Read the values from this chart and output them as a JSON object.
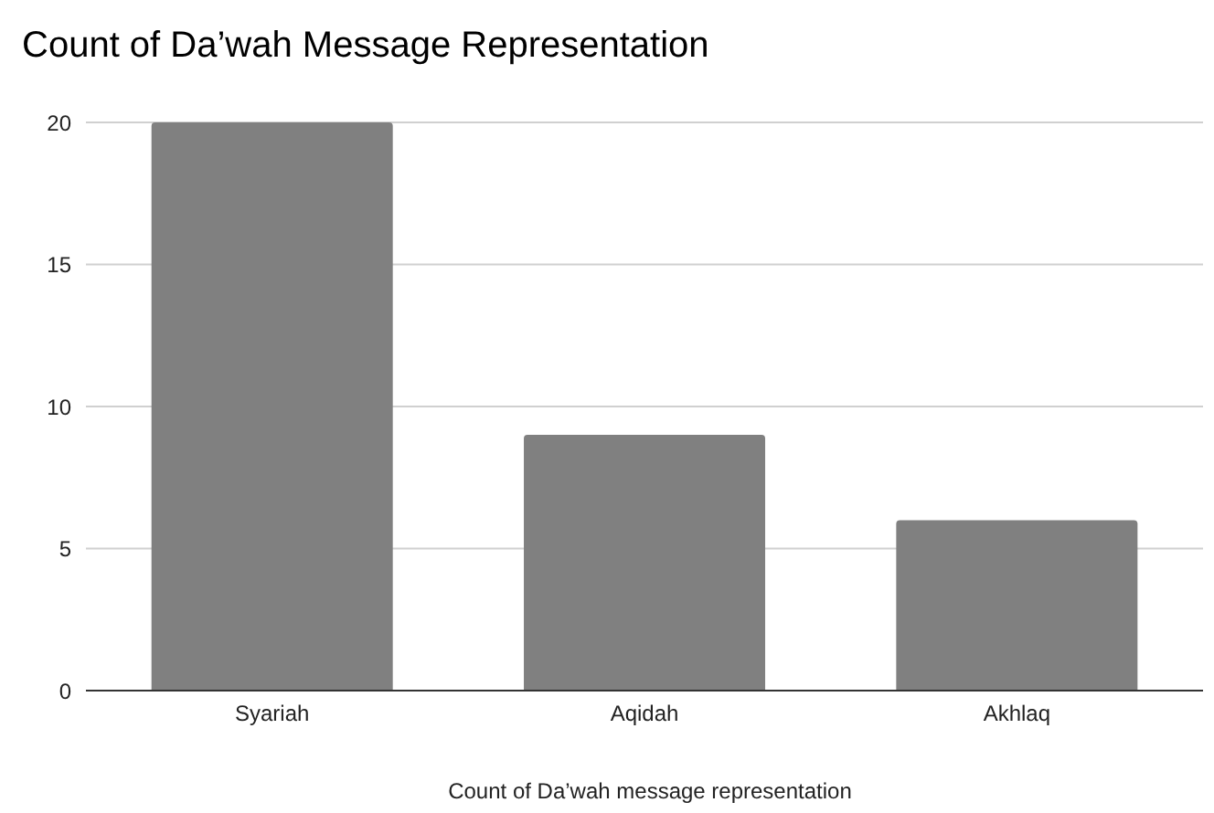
{
  "chart_data": {
    "type": "bar",
    "title": "Count of Da’wah Message Representation",
    "xlabel": "Count of Da’wah message representation",
    "categories": [
      "Syariah",
      "Aqidah",
      "Akhlaq"
    ],
    "values": [
      20,
      9,
      6
    ],
    "color": "#808080",
    "ylim": [
      0,
      20
    ],
    "yticks": [
      0,
      5,
      10,
      15,
      20
    ],
    "grid": "y"
  }
}
